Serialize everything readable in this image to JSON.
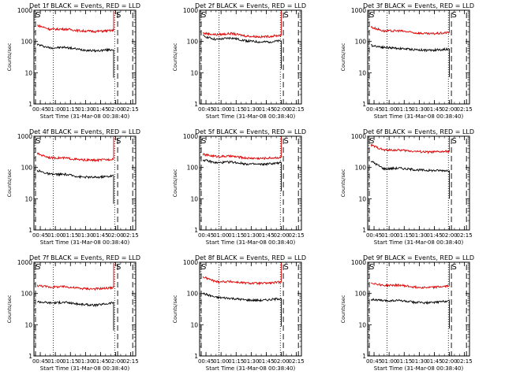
{
  "shared": {
    "title_suffix": "BLACK = Events, RED = LLD",
    "xlabel": "Start Time (31-Mar-08 00:38:40)",
    "ylabel": "Counts/sec",
    "ytick_labels": [
      "1",
      "10",
      "100",
      "1000"
    ],
    "xtick_labels": [
      "00:45",
      "01:00",
      "01:15",
      "01:30",
      "01:45",
      "02:00",
      "02:15"
    ],
    "marker_text": "S",
    "colors": {
      "events": "#000000",
      "lld": "#e00000"
    }
  },
  "chart_data": [
    {
      "type": "line",
      "title": "Det 1f",
      "marker_text": "S",
      "xlabel": "Start Time (31-Mar-08 00:38:40)",
      "ylabel": "Counts/sec",
      "yscale": "log",
      "ylim": [
        1,
        1000
      ],
      "xlim": [
        "00:38:40",
        "02:20:00"
      ],
      "x": [
        "00:42",
        "00:55",
        "01:10",
        "01:25",
        "01:40",
        "01:53",
        "01:58"
      ],
      "series": [
        {
          "name": "Events",
          "color": "#000000",
          "values": [
            80,
            62,
            65,
            55,
            50,
            54,
            55
          ]
        },
        {
          "name": "LLD",
          "color": "#e00000",
          "values": [
            330,
            245,
            250,
            220,
            210,
            220,
            225
          ]
        }
      ]
    },
    {
      "type": "line",
      "title": "Det 2f",
      "marker_text": "S",
      "xlabel": "Start Time (31-Mar-08 00:38:40)",
      "ylabel": "Counts/sec",
      "yscale": "log",
      "ylim": [
        1,
        1000
      ],
      "xlim": [
        "00:38:40",
        "02:20:00"
      ],
      "x": [
        "00:42",
        "00:55",
        "01:10",
        "01:25",
        "01:40",
        "01:53",
        "02:00"
      ],
      "series": [
        {
          "name": "Events",
          "color": "#000000",
          "values": [
            150,
            115,
            130,
            105,
            95,
            100,
            105
          ]
        },
        {
          "name": "LLD",
          "color": "#e00000",
          "values": [
            185,
            165,
            180,
            150,
            140,
            150,
            160
          ]
        }
      ]
    },
    {
      "type": "line",
      "title": "Det 3f",
      "marker_text": "S",
      "xlabel": "Start Time (31-Mar-08 00:38:40)",
      "ylabel": "Counts/sec",
      "yscale": "log",
      "ylim": [
        1,
        1000
      ],
      "xlim": [
        "00:38:40",
        "02:20:00"
      ],
      "x": [
        "00:42",
        "00:55",
        "01:10",
        "01:25",
        "01:40",
        "01:53",
        "02:00"
      ],
      "series": [
        {
          "name": "Events",
          "color": "#000000",
          "values": [
            75,
            65,
            60,
            55,
            52,
            55,
            58
          ]
        },
        {
          "name": "LLD",
          "color": "#e00000",
          "values": [
            290,
            215,
            220,
            190,
            175,
            185,
            195
          ]
        }
      ]
    },
    {
      "type": "line",
      "title": "Det 4f",
      "marker_text": "S",
      "xlabel": "Start Time (31-Mar-08 00:38:40)",
      "ylabel": "Counts/sec",
      "yscale": "log",
      "ylim": [
        1,
        1000
      ],
      "xlim": [
        "00:38:40",
        "02:20:00"
      ],
      "x": [
        "00:42",
        "00:55",
        "01:10",
        "01:25",
        "01:40",
        "01:53",
        "01:58"
      ],
      "series": [
        {
          "name": "Events",
          "color": "#000000",
          "values": [
            80,
            60,
            60,
            50,
            48,
            52,
            55
          ]
        },
        {
          "name": "LLD",
          "color": "#e00000",
          "values": [
            275,
            205,
            200,
            175,
            170,
            180,
            190
          ]
        }
      ]
    },
    {
      "type": "line",
      "title": "Det 5f",
      "marker_text": "S",
      "xlabel": "Start Time (31-Mar-08 00:38:40)",
      "ylabel": "Counts/sec",
      "yscale": "log",
      "ylim": [
        1,
        1000
      ],
      "xlim": [
        "00:38:40",
        "02:20:00"
      ],
      "x": [
        "00:42",
        "00:55",
        "01:10",
        "01:25",
        "01:40",
        "01:53",
        "02:00"
      ],
      "series": [
        {
          "name": "Events",
          "color": "#000000",
          "values": [
            175,
            140,
            150,
            130,
            125,
            135,
            140
          ]
        },
        {
          "name": "LLD",
          "color": "#e00000",
          "values": [
            260,
            225,
            230,
            200,
            195,
            205,
            210
          ]
        }
      ]
    },
    {
      "type": "line",
      "title": "Det 6f",
      "marker_text": "S",
      "xlabel": "Start Time (31-Mar-08 00:38:40)",
      "ylabel": "Counts/sec",
      "yscale": "log",
      "ylim": [
        1,
        1000
      ],
      "xlim": [
        "00:38:40",
        "02:20:00"
      ],
      "x": [
        "00:42",
        "00:55",
        "01:10",
        "01:25",
        "01:40",
        "01:53",
        "02:00"
      ],
      "series": [
        {
          "name": "Events",
          "color": "#000000",
          "values": [
            160,
            90,
            95,
            85,
            80,
            80,
            80
          ]
        },
        {
          "name": "LLD",
          "color": "#e00000",
          "values": [
            520,
            360,
            360,
            330,
            310,
            320,
            330
          ]
        }
      ]
    },
    {
      "type": "line",
      "title": "Det 7f",
      "marker_text": "S",
      "xlabel": "Start Time (31-Mar-08 00:38:40)",
      "ylabel": "Counts/sec",
      "yscale": "log",
      "ylim": [
        1,
        1000
      ],
      "xlim": [
        "00:38:40",
        "02:20:00"
      ],
      "x": [
        "00:42",
        "00:55",
        "01:10",
        "01:25",
        "01:40",
        "01:53",
        "01:58"
      ],
      "series": [
        {
          "name": "Events",
          "color": "#000000",
          "values": [
            55,
            50,
            52,
            45,
            42,
            48,
            52
          ]
        },
        {
          "name": "LLD",
          "color": "#e00000",
          "values": [
            180,
            160,
            165,
            145,
            140,
            150,
            155
          ]
        }
      ]
    },
    {
      "type": "line",
      "title": "Det 8f",
      "marker_text": "S",
      "xlabel": "Start Time (31-Mar-08 00:38:40)",
      "ylabel": "Counts/sec",
      "yscale": "log",
      "ylim": [
        1,
        1000
      ],
      "xlim": [
        "00:38:40",
        "02:20:00"
      ],
      "x": [
        "00:42",
        "00:55",
        "01:10",
        "01:25",
        "01:40",
        "01:53",
        "02:00"
      ],
      "series": [
        {
          "name": "Events",
          "color": "#000000",
          "values": [
            100,
            75,
            70,
            62,
            60,
            65,
            70
          ]
        },
        {
          "name": "LLD",
          "color": "#e00000",
          "values": [
            340,
            240,
            240,
            215,
            210,
            220,
            235
          ]
        }
      ]
    },
    {
      "type": "line",
      "title": "Det 9f",
      "marker_text": "S",
      "xlabel": "Start Time (31-Mar-08 00:38:40)",
      "ylabel": "Counts/sec",
      "yscale": "log",
      "ylim": [
        1,
        1000
      ],
      "xlim": [
        "00:38:40",
        "02:20:00"
      ],
      "x": [
        "00:42",
        "00:55",
        "01:10",
        "01:25",
        "01:40",
        "01:53",
        "02:00"
      ],
      "series": [
        {
          "name": "Events",
          "color": "#000000",
          "values": [
            65,
            58,
            60,
            52,
            50,
            55,
            60
          ]
        },
        {
          "name": "LLD",
          "color": "#e00000",
          "values": [
            220,
            180,
            185,
            160,
            155,
            165,
            175
          ]
        }
      ]
    }
  ]
}
